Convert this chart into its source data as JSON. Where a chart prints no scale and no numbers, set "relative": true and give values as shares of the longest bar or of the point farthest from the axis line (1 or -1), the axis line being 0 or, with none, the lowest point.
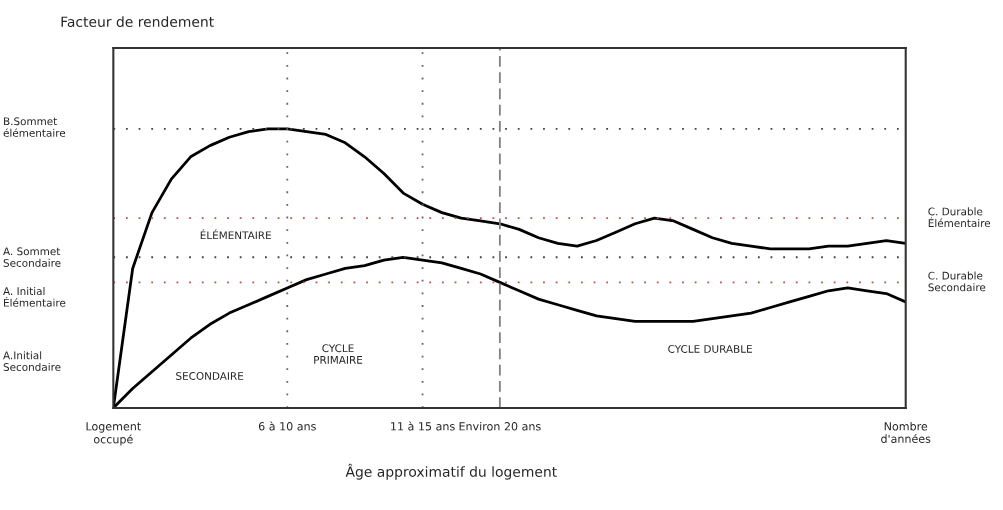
{
  "chart_data": {
    "type": "line",
    "relative": true,
    "xlabel": "Âge approximatif du logement",
    "categories": [
      "Logement\noccupé",
      null,
      null,
      null,
      null,
      null,
      null,
      null,
      null,
      "6 à 10 ans",
      null,
      null,
      null,
      null,
      null,
      null,
      "11 à 15 ans",
      null,
      null,
      null,
      "Environ 20 ans",
      null,
      null,
      null,
      null,
      null,
      null,
      null,
      null,
      null,
      null,
      null,
      null,
      null,
      null,
      null,
      null,
      null,
      null,
      null,
      null,
      "Nombre\nd'années"
    ],
    "series": [
      {
        "color": "#000000",
        "values": [
          0,
          0.5,
          0.7,
          0.82,
          0.9,
          0.94,
          0.97,
          0.99,
          1.0,
          1.0,
          0.99,
          0.98,
          0.95,
          0.9,
          0.84,
          0.77,
          0.73,
          0.7,
          0.68,
          0.67,
          0.66,
          0.64,
          0.61,
          0.59,
          0.58,
          0.6,
          0.63,
          0.66,
          0.68,
          0.67,
          0.64,
          0.61,
          0.59,
          0.58,
          0.57,
          0.57,
          0.57,
          0.58,
          0.58,
          0.59,
          0.6,
          0.59
        ]
      },
      {
        "color": "#000000",
        "values": [
          0,
          0.07,
          0.13,
          0.19,
          0.25,
          0.3,
          0.34,
          0.37,
          0.4,
          0.43,
          0.46,
          0.48,
          0.5,
          0.51,
          0.53,
          0.54,
          0.53,
          0.52,
          0.5,
          0.48,
          0.45,
          0.42,
          0.39,
          0.37,
          0.35,
          0.33,
          0.32,
          0.31,
          0.31,
          0.31,
          0.31,
          0.32,
          0.33,
          0.34,
          0.36,
          0.38,
          0.4,
          0.42,
          0.43,
          0.42,
          0.41,
          0.38
        ]
      }
    ],
    "ref_lines": [
      {
        "axis": "y",
        "value": 1,
        "color": "#444444",
        "line_style": "dotted"
      },
      {
        "axis": "y",
        "value": 0.54,
        "color": "#444444",
        "line_style": "dotted"
      },
      {
        "axis": "y",
        "value": 0.68,
        "color": "#c0504d",
        "line_style": "dotted",
        "label": "C. Durable\nÉlémentaire"
      },
      {
        "axis": "y",
        "value": 0.45,
        "color": "#c0504d",
        "line_style": "dotted",
        "label": "C. Durable\nSecondaire"
      },
      {
        "axis": "x",
        "value": "6 à 10 ans",
        "color": "#666666",
        "line_style": "dotted"
      },
      {
        "axis": "x",
        "value": "11 à 15 ans",
        "color": "#666666",
        "line_style": "dotted"
      },
      {
        "axis": "x",
        "value": "Environ 20 ans",
        "color": "#808080",
        "line_style": "dashed"
      }
    ],
    "annotations": [
      "B.Sommet\nélémentaire",
      "A. Sommet\nSecondaire",
      "A. Initial\nÉlémentaire",
      "A.Initial\nSecondaire",
      "ÉLÉMENTAIRE",
      "SECONDAIRE",
      "CYCLE\nPRIMAIRE",
      "CYCLE DURABLE",
      "Facteur de rendement"
    ]
  }
}
